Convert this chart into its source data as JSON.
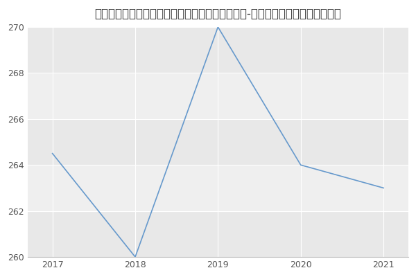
{
  "title": "太原科技大学电子信息工程学院电子与通信工程（-历年复试）研究生录取分数线",
  "x": [
    2017,
    2018,
    2019,
    2020,
    2021
  ],
  "y": [
    264.5,
    260,
    270,
    264,
    263
  ],
  "line_color": "#6699cc",
  "fig_bg_color": "#ffffff",
  "plot_bg_color": "#e8e8e8",
  "band_color_light": "#f0f0f0",
  "band_color_dark": "#e0e0e0",
  "ylim": [
    260,
    270
  ],
  "yticks": [
    260,
    262,
    264,
    266,
    268,
    270
  ],
  "xticks": [
    2017,
    2018,
    2019,
    2020,
    2021
  ],
  "title_fontsize": 12,
  "grid_color": "#ffffff"
}
